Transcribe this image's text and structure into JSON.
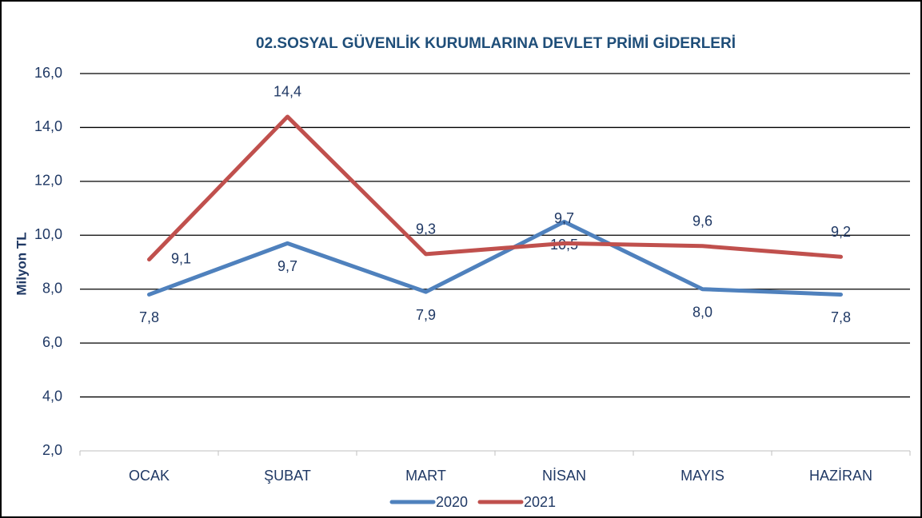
{
  "chart_data": {
    "type": "line",
    "title": "02.SOSYAL GÜVENLİK KURUMLARINA DEVLET PRİMİ GİDERLERİ",
    "y_label": "Milyon TL",
    "categories": [
      "OCAK",
      "ŞUBAT",
      "MART",
      "NİSAN",
      "MAYIS",
      "HAZİRAN"
    ],
    "series": [
      {
        "name": "2020",
        "color": "#4f81bd",
        "values": [
          7.8,
          9.7,
          7.9,
          10.5,
          8.0,
          7.8
        ],
        "value_labels": [
          "7,8",
          "9,7",
          "7,9",
          "10,5",
          "8,0",
          "7,8"
        ]
      },
      {
        "name": "2021",
        "color": "#c0504d",
        "values": [
          9.1,
          14.4,
          9.3,
          9.7,
          9.6,
          9.2
        ],
        "value_labels": [
          "9,1",
          "14,4",
          "9,3",
          "9,7",
          "9,6",
          "9,2"
        ]
      }
    ],
    "ylim": [
      2,
      16
    ],
    "yticks": [
      {
        "value": 2,
        "label": "2,0"
      },
      {
        "value": 4,
        "label": "4,0"
      },
      {
        "value": 6,
        "label": "6,0"
      },
      {
        "value": 8,
        "label": "8,0"
      },
      {
        "value": 10,
        "label": "10,0"
      },
      {
        "value": 12,
        "label": "12,0"
      },
      {
        "value": 14,
        "label": "14,0"
      },
      {
        "value": 16,
        "label": "16,0"
      }
    ],
    "grid": true,
    "legend": "bottom"
  }
}
